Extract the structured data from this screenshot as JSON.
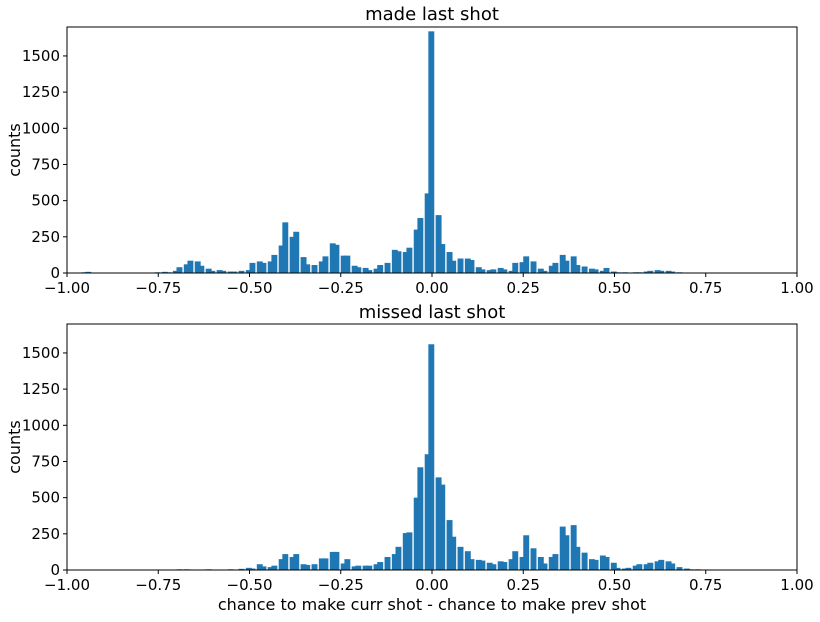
{
  "figure": {
    "subplots": [
      {
        "title": "made last shot",
        "xlabel": "",
        "ylabel": "counts"
      },
      {
        "title": "missed last shot",
        "xlabel": "chance to make curr shot - chance to make prev shot",
        "ylabel": "counts"
      }
    ]
  },
  "chart_data": [
    {
      "type": "bar",
      "title": "made last shot",
      "xlabel": "",
      "ylabel": "counts",
      "xlim": [
        -1.0,
        1.0
      ],
      "ylim": [
        0,
        1700
      ],
      "xticks": [
        "−1.00",
        "−0.75",
        "−0.50",
        "−0.25",
        "0.00",
        "0.25",
        "0.50",
        "0.75",
        "1.00"
      ],
      "yticks": [
        "0",
        "250",
        "500",
        "750",
        "1000",
        "1250",
        "1500"
      ],
      "grid": false,
      "color": "#1f77b4",
      "bin_width": 0.0154,
      "bins": [
        {
          "x": -0.96,
          "y": 5
        },
        {
          "x": -0.95,
          "y": 8
        },
        {
          "x": -0.76,
          "y": 5
        },
        {
          "x": -0.74,
          "y": 8
        },
        {
          "x": -0.73,
          "y": 5
        },
        {
          "x": -0.71,
          "y": 15
        },
        {
          "x": -0.7,
          "y": 40
        },
        {
          "x": -0.68,
          "y": 60
        },
        {
          "x": -0.67,
          "y": 85
        },
        {
          "x": -0.65,
          "y": 80
        },
        {
          "x": -0.64,
          "y": 50
        },
        {
          "x": -0.62,
          "y": 30
        },
        {
          "x": -0.61,
          "y": 15
        },
        {
          "x": -0.59,
          "y": 20
        },
        {
          "x": -0.58,
          "y": 15
        },
        {
          "x": -0.56,
          "y": 10
        },
        {
          "x": -0.55,
          "y": 10
        },
        {
          "x": -0.53,
          "y": 15
        },
        {
          "x": -0.51,
          "y": 20
        },
        {
          "x": -0.5,
          "y": 70
        },
        {
          "x": -0.48,
          "y": 80
        },
        {
          "x": -0.47,
          "y": 70
        },
        {
          "x": -0.45,
          "y": 80
        },
        {
          "x": -0.44,
          "y": 125
        },
        {
          "x": -0.42,
          "y": 190
        },
        {
          "x": -0.41,
          "y": 350
        },
        {
          "x": -0.39,
          "y": 250
        },
        {
          "x": -0.38,
          "y": 285
        },
        {
          "x": -0.36,
          "y": 110
        },
        {
          "x": -0.35,
          "y": 60
        },
        {
          "x": -0.33,
          "y": 55
        },
        {
          "x": -0.31,
          "y": 80
        },
        {
          "x": -0.3,
          "y": 115
        },
        {
          "x": -0.28,
          "y": 205
        },
        {
          "x": -0.27,
          "y": 195
        },
        {
          "x": -0.25,
          "y": 120
        },
        {
          "x": -0.24,
          "y": 120
        },
        {
          "x": -0.22,
          "y": 50
        },
        {
          "x": -0.21,
          "y": 40
        },
        {
          "x": -0.19,
          "y": 35
        },
        {
          "x": -0.18,
          "y": 20
        },
        {
          "x": -0.16,
          "y": 30
        },
        {
          "x": -0.15,
          "y": 55
        },
        {
          "x": -0.13,
          "y": 70
        },
        {
          "x": -0.11,
          "y": 160
        },
        {
          "x": -0.1,
          "y": 150
        },
        {
          "x": -0.08,
          "y": 145
        },
        {
          "x": -0.07,
          "y": 175
        },
        {
          "x": -0.05,
          "y": 300
        },
        {
          "x": -0.04,
          "y": 380
        },
        {
          "x": -0.02,
          "y": 550
        },
        {
          "x": -0.01,
          "y": 1670
        },
        {
          "x": 0.01,
          "y": 400
        },
        {
          "x": 0.02,
          "y": 200
        },
        {
          "x": 0.04,
          "y": 145
        },
        {
          "x": 0.05,
          "y": 85
        },
        {
          "x": 0.07,
          "y": 100
        },
        {
          "x": 0.09,
          "y": 100
        },
        {
          "x": 0.1,
          "y": 90
        },
        {
          "x": 0.12,
          "y": 40
        },
        {
          "x": 0.13,
          "y": 25
        },
        {
          "x": 0.15,
          "y": 20
        },
        {
          "x": 0.16,
          "y": 25
        },
        {
          "x": 0.18,
          "y": 35
        },
        {
          "x": 0.19,
          "y": 25
        },
        {
          "x": 0.21,
          "y": 15
        },
        {
          "x": 0.22,
          "y": 70
        },
        {
          "x": 0.24,
          "y": 75
        },
        {
          "x": 0.25,
          "y": 115
        },
        {
          "x": 0.27,
          "y": 80
        },
        {
          "x": 0.29,
          "y": 30
        },
        {
          "x": 0.3,
          "y": 15
        },
        {
          "x": 0.32,
          "y": 50
        },
        {
          "x": 0.33,
          "y": 70
        },
        {
          "x": 0.35,
          "y": 125
        },
        {
          "x": 0.36,
          "y": 85
        },
        {
          "x": 0.38,
          "y": 115
        },
        {
          "x": 0.39,
          "y": 55
        },
        {
          "x": 0.41,
          "y": 45
        },
        {
          "x": 0.43,
          "y": 30
        },
        {
          "x": 0.44,
          "y": 25
        },
        {
          "x": 0.46,
          "y": 15
        },
        {
          "x": 0.47,
          "y": 35
        },
        {
          "x": 0.49,
          "y": 10
        },
        {
          "x": 0.5,
          "y": 5
        },
        {
          "x": 0.52,
          "y": 5
        },
        {
          "x": 0.55,
          "y": 5
        },
        {
          "x": 0.56,
          "y": 5
        },
        {
          "x": 0.58,
          "y": 10
        },
        {
          "x": 0.59,
          "y": 15
        },
        {
          "x": 0.61,
          "y": 20
        },
        {
          "x": 0.62,
          "y": 15
        },
        {
          "x": 0.64,
          "y": 15
        },
        {
          "x": 0.65,
          "y": 10
        },
        {
          "x": 0.67,
          "y": 5
        },
        {
          "x": 0.69,
          "y": 3
        }
      ]
    },
    {
      "type": "bar",
      "title": "missed last shot",
      "xlabel": "chance to make curr shot - chance to make prev shot",
      "ylabel": "counts",
      "xlim": [
        -1.0,
        1.0
      ],
      "ylim": [
        0,
        1700
      ],
      "xticks": [
        "−1.00",
        "−0.75",
        "−0.50",
        "−0.25",
        "0.00",
        "0.25",
        "0.50",
        "0.75",
        "1.00"
      ],
      "yticks": [
        "0",
        "250",
        "500",
        "750",
        "1000",
        "1250",
        "1500"
      ],
      "grid": false,
      "color": "#1f77b4",
      "bin_width": 0.0154,
      "bins": [
        {
          "x": -0.7,
          "y": 5
        },
        {
          "x": -0.68,
          "y": 5
        },
        {
          "x": -0.62,
          "y": 5
        },
        {
          "x": -0.59,
          "y": 3
        },
        {
          "x": -0.56,
          "y": 5
        },
        {
          "x": -0.53,
          "y": 8
        },
        {
          "x": -0.51,
          "y": 15
        },
        {
          "x": -0.5,
          "y": 10
        },
        {
          "x": -0.48,
          "y": 40
        },
        {
          "x": -0.47,
          "y": 25
        },
        {
          "x": -0.45,
          "y": 20
        },
        {
          "x": -0.44,
          "y": 30
        },
        {
          "x": -0.42,
          "y": 75
        },
        {
          "x": -0.41,
          "y": 110
        },
        {
          "x": -0.39,
          "y": 90
        },
        {
          "x": -0.38,
          "y": 110
        },
        {
          "x": -0.36,
          "y": 40
        },
        {
          "x": -0.35,
          "y": 35
        },
        {
          "x": -0.33,
          "y": 40
        },
        {
          "x": -0.31,
          "y": 80
        },
        {
          "x": -0.3,
          "y": 80
        },
        {
          "x": -0.28,
          "y": 125
        },
        {
          "x": -0.27,
          "y": 125
        },
        {
          "x": -0.25,
          "y": 45
        },
        {
          "x": -0.24,
          "y": 75
        },
        {
          "x": -0.22,
          "y": 25
        },
        {
          "x": -0.21,
          "y": 30
        },
        {
          "x": -0.19,
          "y": 30
        },
        {
          "x": -0.18,
          "y": 30
        },
        {
          "x": -0.16,
          "y": 40
        },
        {
          "x": -0.15,
          "y": 55
        },
        {
          "x": -0.13,
          "y": 90
        },
        {
          "x": -0.11,
          "y": 110
        },
        {
          "x": -0.1,
          "y": 160
        },
        {
          "x": -0.08,
          "y": 255
        },
        {
          "x": -0.07,
          "y": 260
        },
        {
          "x": -0.05,
          "y": 500
        },
        {
          "x": -0.04,
          "y": 710
        },
        {
          "x": -0.02,
          "y": 800
        },
        {
          "x": -0.01,
          "y": 1560
        },
        {
          "x": 0.01,
          "y": 640
        },
        {
          "x": 0.02,
          "y": 590
        },
        {
          "x": 0.04,
          "y": 345
        },
        {
          "x": 0.05,
          "y": 230
        },
        {
          "x": 0.07,
          "y": 160
        },
        {
          "x": 0.09,
          "y": 130
        },
        {
          "x": 0.1,
          "y": 75
        },
        {
          "x": 0.12,
          "y": 70
        },
        {
          "x": 0.13,
          "y": 65
        },
        {
          "x": 0.15,
          "y": 50
        },
        {
          "x": 0.16,
          "y": 40
        },
        {
          "x": 0.18,
          "y": 60
        },
        {
          "x": 0.19,
          "y": 55
        },
        {
          "x": 0.21,
          "y": 75
        },
        {
          "x": 0.22,
          "y": 130
        },
        {
          "x": 0.24,
          "y": 90
        },
        {
          "x": 0.25,
          "y": 240
        },
        {
          "x": 0.27,
          "y": 150
        },
        {
          "x": 0.29,
          "y": 90
        },
        {
          "x": 0.3,
          "y": 45
        },
        {
          "x": 0.32,
          "y": 90
        },
        {
          "x": 0.33,
          "y": 110
        },
        {
          "x": 0.35,
          "y": 300
        },
        {
          "x": 0.36,
          "y": 240
        },
        {
          "x": 0.38,
          "y": 310
        },
        {
          "x": 0.39,
          "y": 160
        },
        {
          "x": 0.41,
          "y": 120
        },
        {
          "x": 0.43,
          "y": 75
        },
        {
          "x": 0.44,
          "y": 70
        },
        {
          "x": 0.46,
          "y": 100
        },
        {
          "x": 0.47,
          "y": 90
        },
        {
          "x": 0.49,
          "y": 50
        },
        {
          "x": 0.5,
          "y": 15
        },
        {
          "x": 0.52,
          "y": 10
        },
        {
          "x": 0.53,
          "y": 15
        },
        {
          "x": 0.55,
          "y": 30
        },
        {
          "x": 0.56,
          "y": 40
        },
        {
          "x": 0.58,
          "y": 40
        },
        {
          "x": 0.59,
          "y": 50
        },
        {
          "x": 0.61,
          "y": 60
        },
        {
          "x": 0.62,
          "y": 70
        },
        {
          "x": 0.64,
          "y": 60
        },
        {
          "x": 0.65,
          "y": 45
        },
        {
          "x": 0.67,
          "y": 20
        },
        {
          "x": 0.69,
          "y": 10
        },
        {
          "x": 0.7,
          "y": 5
        },
        {
          "x": 0.72,
          "y": 5
        },
        {
          "x": 0.73,
          "y": 3
        }
      ]
    }
  ]
}
